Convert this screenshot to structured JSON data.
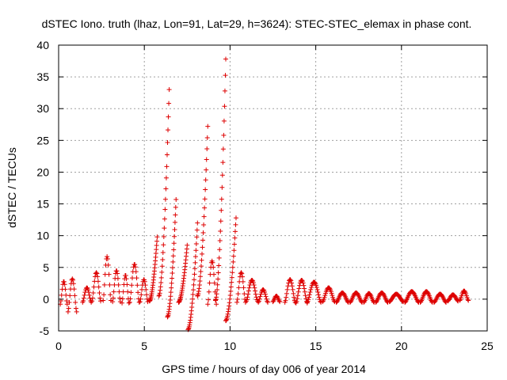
{
  "chart_data": {
    "type": "scatter",
    "title": "dSTEC Iono. truth (lhaz, Lon=91, Lat=29, h=3624): STEC-STEC_elemax in phase cont.",
    "xlabel": "GPS time / hours of day 006 of year 2014",
    "ylabel": "dSTEC  / TECUs",
    "xlim": [
      0,
      25
    ],
    "ylim": [
      -5,
      40
    ],
    "xticks": [
      0,
      5,
      10,
      15,
      20,
      25
    ],
    "yticks": [
      -5,
      0,
      5,
      10,
      15,
      20,
      25,
      30,
      35,
      40
    ],
    "grid": true,
    "marker": "+",
    "series_color": "#dd0000",
    "arcs": [
      {
        "start": 0.1,
        "end": 0.5,
        "peak": 2.8,
        "low": -0.8
      },
      {
        "start": 0.55,
        "end": 1.05,
        "peak": 3.2,
        "low": -2.0
      },
      {
        "start": 1.4,
        "end": 1.9,
        "peak": 1.8,
        "low": -0.5
      },
      {
        "start": 1.95,
        "end": 2.45,
        "peak": 4.2,
        "low": -0.3
      },
      {
        "start": 2.6,
        "end": 3.05,
        "peak": 6.7,
        "low": -0.2
      },
      {
        "start": 3.15,
        "end": 3.6,
        "peak": 4.5,
        "low": -0.4
      },
      {
        "start": 3.7,
        "end": 4.1,
        "peak": 3.8,
        "low": -0.6
      },
      {
        "start": 4.15,
        "end": 4.7,
        "peak": 5.5,
        "low": -0.5
      },
      {
        "start": 4.75,
        "end": 5.2,
        "peak": 3.1,
        "low": -0.4
      },
      {
        "start": 5.3,
        "end": 5.75,
        "peak": 9.8,
        "low": -0.3
      },
      {
        "start": 5.85,
        "end": 6.45,
        "peak": 33.0,
        "low": 0.5
      },
      {
        "start": 6.35,
        "end": 6.85,
        "peak": 15.7,
        "low": -2.8
      },
      {
        "start": 7.0,
        "end": 7.5,
        "peak": 8.5,
        "low": -0.5
      },
      {
        "start": 7.55,
        "end": 8.1,
        "peak": 12.0,
        "low": -4.8
      },
      {
        "start": 8.1,
        "end": 8.7,
        "peak": 27.2,
        "low": 0.5
      },
      {
        "start": 8.7,
        "end": 9.2,
        "peak": 6.0,
        "low": -0.8
      },
      {
        "start": 9.15,
        "end": 9.75,
        "peak": 37.8,
        "low": -0.2
      },
      {
        "start": 9.75,
        "end": 10.35,
        "peak": 12.8,
        "low": -3.4
      },
      {
        "start": 10.4,
        "end": 10.9,
        "peak": 4.2,
        "low": -0.5
      },
      {
        "start": 10.95,
        "end": 11.6,
        "peak": 3.0,
        "low": -0.3
      },
      {
        "start": 11.65,
        "end": 12.2,
        "peak": 1.5,
        "low": -0.5
      },
      {
        "start": 12.5,
        "end": 12.9,
        "peak": 0.5,
        "low": -0.4
      },
      {
        "start": 13.2,
        "end": 13.8,
        "peak": 3.1,
        "low": -0.5
      },
      {
        "start": 13.85,
        "end": 14.5,
        "peak": 3.0,
        "low": -0.6
      },
      {
        "start": 14.5,
        "end": 15.3,
        "peak": 2.7,
        "low": -0.5
      },
      {
        "start": 15.4,
        "end": 16.1,
        "peak": 1.8,
        "low": -0.4
      },
      {
        "start": 16.2,
        "end": 16.9,
        "peak": 1.0,
        "low": -0.5
      },
      {
        "start": 17.0,
        "end": 17.7,
        "peak": 1.0,
        "low": -0.5
      },
      {
        "start": 17.8,
        "end": 18.4,
        "peak": 0.9,
        "low": -0.5
      },
      {
        "start": 18.5,
        "end": 19.2,
        "peak": 1.0,
        "low": -0.5
      },
      {
        "start": 19.3,
        "end": 20.1,
        "peak": 0.8,
        "low": -0.4
      },
      {
        "start": 20.2,
        "end": 21.0,
        "peak": 1.2,
        "low": -0.5
      },
      {
        "start": 21.1,
        "end": 21.8,
        "peak": 1.2,
        "low": -0.5
      },
      {
        "start": 21.9,
        "end": 22.6,
        "peak": 0.8,
        "low": -0.5
      },
      {
        "start": 22.7,
        "end": 23.3,
        "peak": 0.7,
        "low": -0.3
      },
      {
        "start": 23.4,
        "end": 23.9,
        "peak": 1.3,
        "low": -0.2
      }
    ]
  }
}
